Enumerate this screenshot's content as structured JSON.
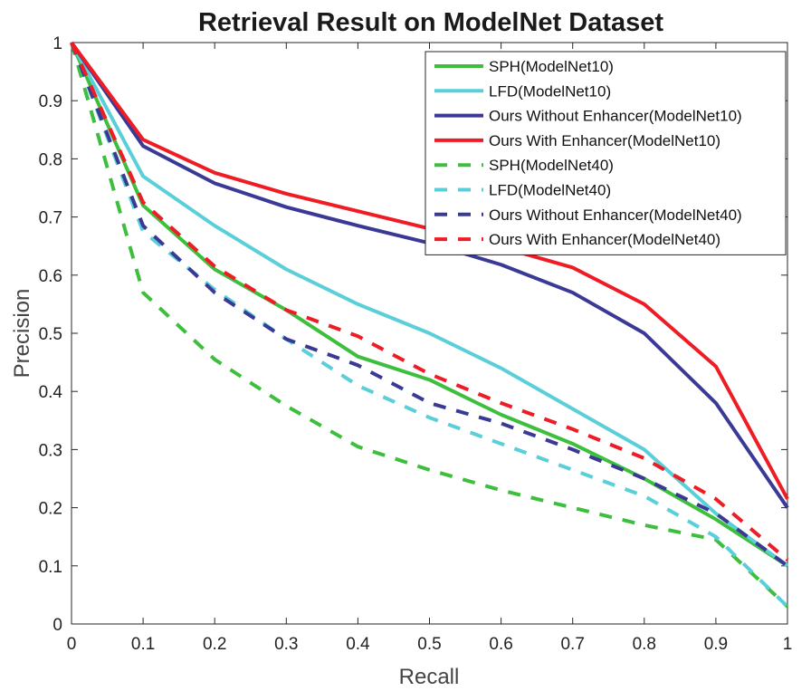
{
  "chart_data": {
    "type": "line",
    "title": "Retrieval Result on ModelNet Dataset",
    "xlabel": "Recall",
    "ylabel": "Precision",
    "xlim": [
      0,
      1
    ],
    "ylim": [
      0,
      1
    ],
    "xticks": [
      "0",
      "0.1",
      "0.2",
      "0.3",
      "0.4",
      "0.5",
      "0.6",
      "0.7",
      "0.8",
      "0.9",
      "1"
    ],
    "yticks": [
      "0",
      "0.1",
      "0.2",
      "0.3",
      "0.4",
      "0.5",
      "0.6",
      "0.7",
      "0.8",
      "0.9",
      "1"
    ],
    "legend_position": "top-right",
    "x": [
      0,
      0.1,
      0.2,
      0.3,
      0.4,
      0.5,
      0.6,
      0.7,
      0.8,
      0.9,
      1
    ],
    "series": [
      {
        "name": "SPH(ModelNet10)",
        "color": "#3dbf3d",
        "dash": "solid",
        "values": [
          1,
          0.72,
          0.61,
          0.54,
          0.46,
          0.42,
          0.36,
          0.31,
          0.25,
          0.18,
          0.1
        ]
      },
      {
        "name": "LFD(ModelNet10)",
        "color": "#5bcfd9",
        "dash": "solid",
        "values": [
          1,
          0.77,
          0.685,
          0.61,
          0.55,
          0.5,
          0.44,
          0.37,
          0.3,
          0.19,
          0.1
        ]
      },
      {
        "name": "Ours Without Enhancer(ModelNet10)",
        "color": "#3a3a96",
        "dash": "solid",
        "values": [
          1,
          0.822,
          0.758,
          0.717,
          0.685,
          0.655,
          0.618,
          0.57,
          0.5,
          0.38,
          0.2
        ]
      },
      {
        "name": "Ours With Enhancer(ModelNet10)",
        "color": "#ee1c24",
        "dash": "solid",
        "values": [
          1,
          0.833,
          0.776,
          0.74,
          0.71,
          0.68,
          0.648,
          0.613,
          0.55,
          0.443,
          0.215
        ]
      },
      {
        "name": "SPH(ModelNet40)",
        "color": "#3dbf3d",
        "dash": "dashed",
        "values": [
          1,
          0.57,
          0.455,
          0.375,
          0.305,
          0.265,
          0.23,
          0.2,
          0.17,
          0.145,
          0.03
        ]
      },
      {
        "name": "LFD(ModelNet40)",
        "color": "#5bcfd9",
        "dash": "dashed",
        "values": [
          1,
          0.675,
          0.575,
          0.49,
          0.41,
          0.355,
          0.31,
          0.265,
          0.22,
          0.15,
          0.03
        ]
      },
      {
        "name": "Ours Without Enhancer(ModelNet40)",
        "color": "#3a3a96",
        "dash": "dashed",
        "values": [
          1,
          0.685,
          0.57,
          0.49,
          0.445,
          0.38,
          0.345,
          0.3,
          0.25,
          0.19,
          0.1
        ]
      },
      {
        "name": "Ours With Enhancer(ModelNet40)",
        "color": "#ee1c24",
        "dash": "dashed",
        "values": [
          1,
          0.725,
          0.615,
          0.54,
          0.495,
          0.43,
          0.38,
          0.335,
          0.285,
          0.215,
          0.11
        ]
      }
    ]
  }
}
